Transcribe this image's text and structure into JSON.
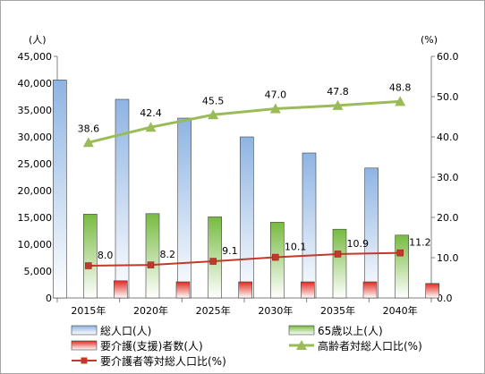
{
  "chart_data": {
    "type": "bar",
    "categories": [
      "2015年",
      "2020年",
      "2025年",
      "2030年",
      "2035年",
      "2040年"
    ],
    "series": [
      {
        "name": "総人口(人)",
        "type": "bar",
        "axis": "left",
        "values": [
          40600,
          37000,
          33500,
          30000,
          27000,
          24200
        ],
        "color": "#95b3d7"
      },
      {
        "name": "65歳以上(人)",
        "type": "bar",
        "axis": "left",
        "values": [
          15600,
          15700,
          15100,
          14100,
          12800,
          11700
        ],
        "color": "#77bb41"
      },
      {
        "name": "要介護(支援)者数(人)",
        "type": "bar",
        "axis": "left",
        "values": [
          3200,
          3000,
          3000,
          3000,
          3000,
          2700
        ],
        "color": "#e03c31"
      },
      {
        "name": "高齢者対総人口比(%)",
        "type": "line",
        "axis": "right",
        "values": [
          38.6,
          42.4,
          45.5,
          47.0,
          47.8,
          48.8
        ],
        "labels": [
          "38.6",
          "42.4",
          "45.5",
          "47.0",
          "47.8",
          "48.8"
        ],
        "color": "#9bbb59"
      },
      {
        "name": "要介護者等対総人口比(%)",
        "type": "line",
        "axis": "right",
        "values": [
          8.0,
          8.2,
          9.1,
          10.1,
          10.9,
          11.2
        ],
        "labels": [
          "8.0",
          "8.2",
          "9.1",
          "10.1",
          "10.9",
          "11.2"
        ],
        "color": "#c0392b"
      }
    ],
    "y_left": {
      "unit": "(人)",
      "ylim": [
        0,
        45000
      ],
      "ticks": [
        "0",
        "5,000",
        "10,000",
        "15,000",
        "20,000",
        "25,000",
        "30,000",
        "35,000",
        "40,000",
        "45,000"
      ]
    },
    "y_right": {
      "unit": "(%)",
      "ylim": [
        0,
        60
      ],
      "ticks": [
        "0.0",
        "10.0",
        "20.0",
        "30.0",
        "40.0",
        "50.0",
        "60.0"
      ]
    },
    "grid": false,
    "legend": "bottom"
  }
}
